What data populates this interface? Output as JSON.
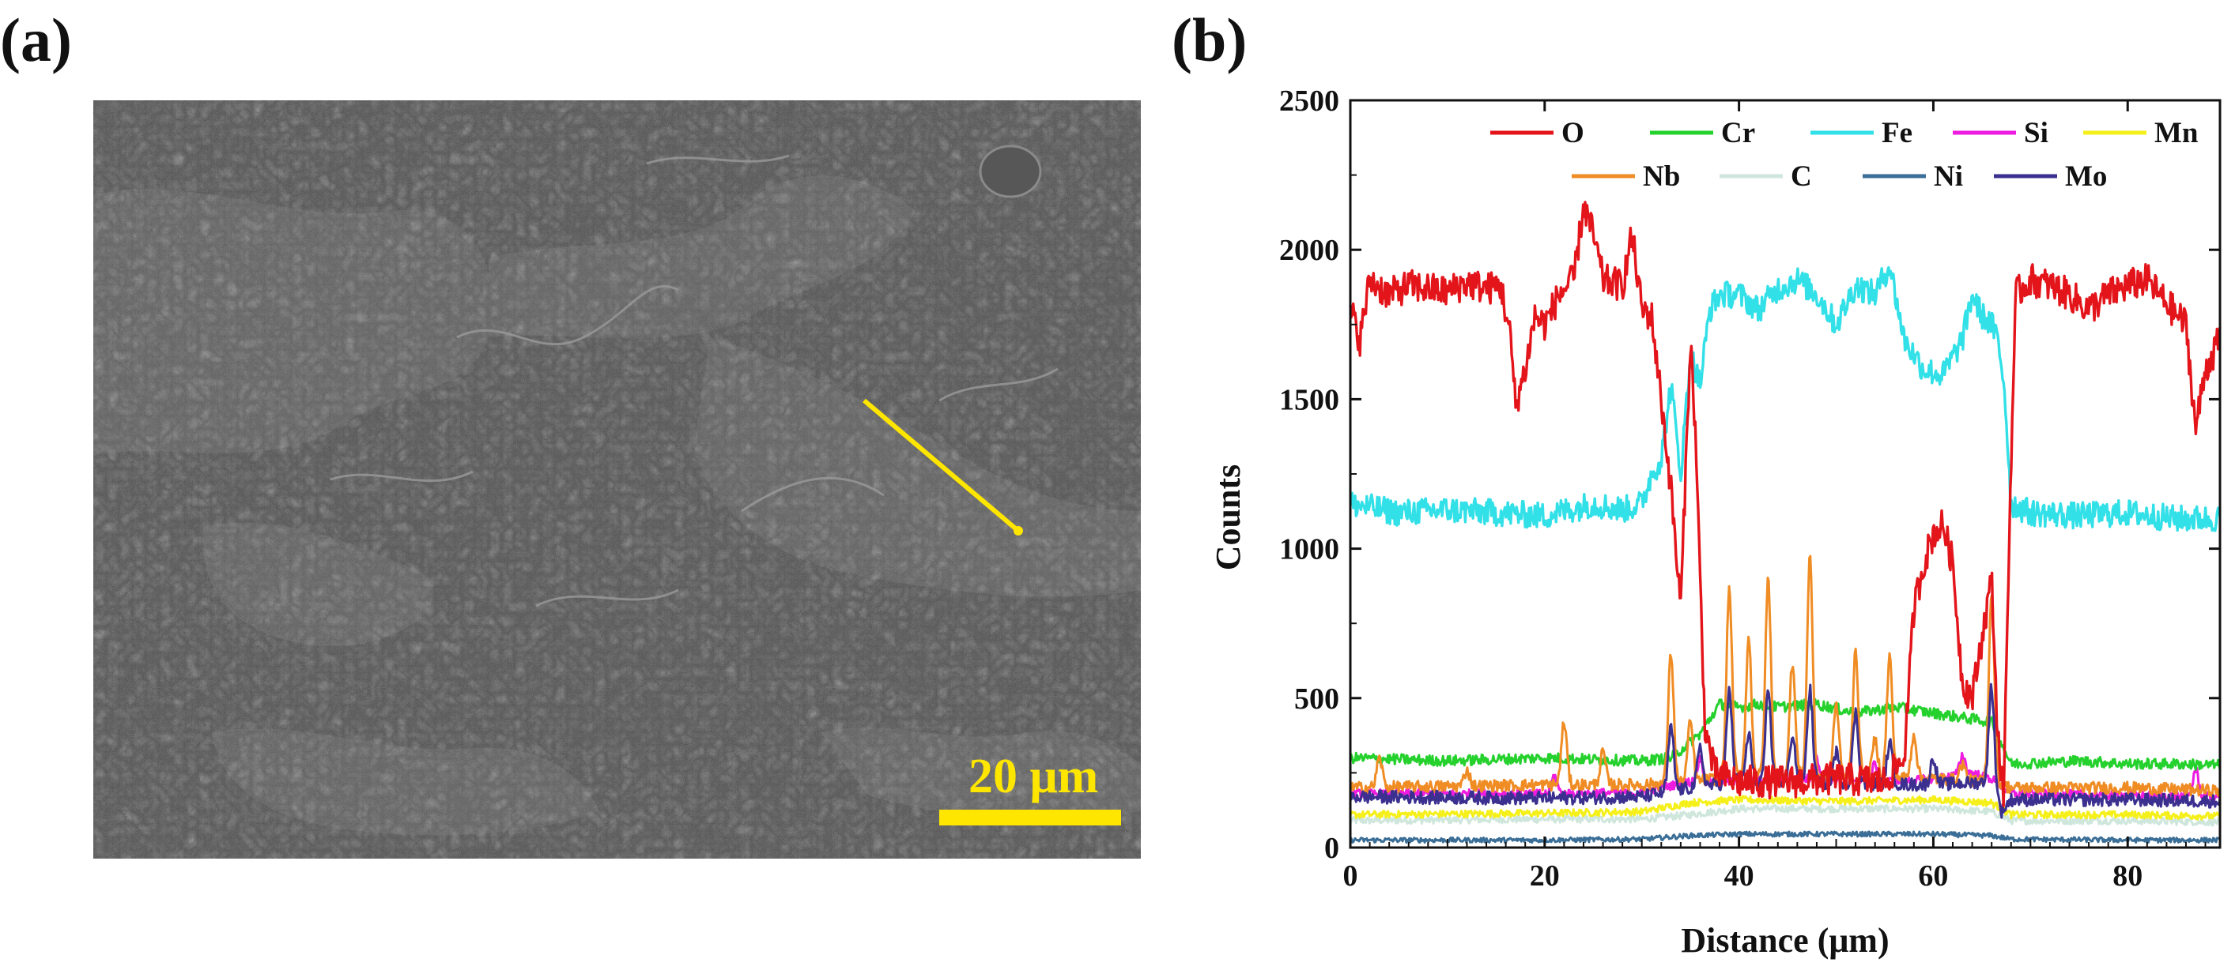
{
  "panels": {
    "a_label": "(a)",
    "b_label": "(b)"
  },
  "sem_image": {
    "scale_bar_label": "20 μm",
    "scan_line_color": "#ffe600",
    "background_color": "#4a4a4a"
  },
  "chart_data": {
    "type": "line",
    "title": "",
    "xlabel": "Distance (μm)",
    "ylabel": "Counts",
    "xlim": [
      0,
      89.5
    ],
    "ylim": [
      0,
      2500
    ],
    "xticks": [
      0,
      20,
      40,
      60,
      80
    ],
    "yticks": [
      0,
      500,
      1000,
      1500,
      2000,
      2500
    ],
    "legend_position": "top-right",
    "series": [
      {
        "name": "O",
        "color": "#e3141a",
        "anchors": [
          [
            0,
            1800
          ],
          [
            1,
            1700
          ],
          [
            2,
            1900
          ],
          [
            4,
            1850
          ],
          [
            6,
            1880
          ],
          [
            8,
            1870
          ],
          [
            10,
            1860
          ],
          [
            12,
            1890
          ],
          [
            14,
            1870
          ],
          [
            15.5,
            1880
          ],
          [
            16.5,
            1700
          ],
          [
            17,
            1480
          ],
          [
            18,
            1600
          ],
          [
            19,
            1780
          ],
          [
            20,
            1750
          ],
          [
            21.5,
            1850
          ],
          [
            23,
            1900
          ],
          [
            24,
            2150
          ],
          [
            25,
            2050
          ],
          [
            26,
            1900
          ],
          [
            28,
            1880
          ],
          [
            29,
            2050
          ],
          [
            30,
            1800
          ],
          [
            31,
            1780
          ],
          [
            32,
            1500
          ],
          [
            33,
            1200
          ],
          [
            34,
            800
          ],
          [
            35,
            1700
          ],
          [
            35.5,
            1400
          ],
          [
            36.5,
            400
          ],
          [
            37.5,
            250
          ],
          [
            40,
            220
          ],
          [
            45,
            220
          ],
          [
            50,
            230
          ],
          [
            55,
            220
          ],
          [
            57,
            300
          ],
          [
            58,
            800
          ],
          [
            59,
            950
          ],
          [
            60,
            1050
          ],
          [
            61,
            1080
          ],
          [
            62,
            950
          ],
          [
            63,
            550
          ],
          [
            64,
            500
          ],
          [
            65,
            700
          ],
          [
            66,
            900
          ],
          [
            66.6,
            400
          ],
          [
            67.2,
            150
          ],
          [
            68,
            1300
          ],
          [
            68.5,
            1850
          ],
          [
            70,
            1900
          ],
          [
            72,
            1880
          ],
          [
            74,
            1850
          ],
          [
            76,
            1800
          ],
          [
            78,
            1850
          ],
          [
            80,
            1880
          ],
          [
            82,
            1900
          ],
          [
            84,
            1820
          ],
          [
            86,
            1750
          ],
          [
            87,
            1400
          ],
          [
            88,
            1600
          ],
          [
            89.5,
            1700
          ]
        ]
      },
      {
        "name": "Cr",
        "color": "#25d12c",
        "anchors": [
          [
            0,
            300
          ],
          [
            10,
            290
          ],
          [
            20,
            300
          ],
          [
            30,
            290
          ],
          [
            33,
            300
          ],
          [
            36,
            380
          ],
          [
            38,
            480
          ],
          [
            40,
            470
          ],
          [
            42,
            480
          ],
          [
            44,
            470
          ],
          [
            48,
            480
          ],
          [
            52,
            450
          ],
          [
            56,
            470
          ],
          [
            60,
            450
          ],
          [
            64,
            430
          ],
          [
            66,
            420
          ],
          [
            67,
            350
          ],
          [
            68,
            280
          ],
          [
            75,
            290
          ],
          [
            80,
            280
          ],
          [
            85,
            280
          ],
          [
            89.5,
            275
          ]
        ]
      },
      {
        "name": "Fe",
        "color": "#32e0e8",
        "anchors": [
          [
            0,
            1150
          ],
          [
            5,
            1120
          ],
          [
            10,
            1130
          ],
          [
            15,
            1120
          ],
          [
            20,
            1110
          ],
          [
            25,
            1150
          ],
          [
            28,
            1130
          ],
          [
            30,
            1150
          ],
          [
            31,
            1250
          ],
          [
            32,
            1300
          ],
          [
            33,
            1550
          ],
          [
            34,
            1250
          ],
          [
            35,
            1650
          ],
          [
            36,
            1550
          ],
          [
            37,
            1800
          ],
          [
            38,
            1850
          ],
          [
            40,
            1850
          ],
          [
            42,
            1800
          ],
          [
            44,
            1870
          ],
          [
            46,
            1900
          ],
          [
            48,
            1850
          ],
          [
            50,
            1750
          ],
          [
            52,
            1880
          ],
          [
            54,
            1850
          ],
          [
            55.5,
            1950
          ],
          [
            57,
            1700
          ],
          [
            59,
            1600
          ],
          [
            61,
            1580
          ],
          [
            63,
            1700
          ],
          [
            64,
            1850
          ],
          [
            65,
            1780
          ],
          [
            66,
            1750
          ],
          [
            66.6,
            1700
          ],
          [
            67.3,
            1550
          ],
          [
            68,
            1150
          ],
          [
            70,
            1120
          ],
          [
            75,
            1110
          ],
          [
            80,
            1120
          ],
          [
            85,
            1100
          ],
          [
            89.5,
            1100
          ]
        ]
      },
      {
        "name": "Si",
        "color": "#ee1be0",
        "anchors": [
          [
            0,
            180
          ],
          [
            20,
            180
          ],
          [
            30,
            185
          ],
          [
            32,
            200
          ],
          [
            35,
            220
          ],
          [
            40,
            220
          ],
          [
            45,
            230
          ],
          [
            50,
            230
          ],
          [
            55,
            220
          ],
          [
            60,
            230
          ],
          [
            64,
            250
          ],
          [
            66,
            230
          ],
          [
            68,
            180
          ],
          [
            80,
            175
          ],
          [
            89.5,
            170
          ]
        ]
      },
      {
        "name": "Mn",
        "color": "#f5ef1a",
        "anchors": [
          [
            0,
            110
          ],
          [
            20,
            115
          ],
          [
            30,
            120
          ],
          [
            35,
            150
          ],
          [
            40,
            160
          ],
          [
            50,
            155
          ],
          [
            60,
            160
          ],
          [
            66,
            150
          ],
          [
            68,
            110
          ],
          [
            80,
            110
          ],
          [
            89.5,
            105
          ]
        ]
      },
      {
        "name": "Nb",
        "color": "#f08c24",
        "anchors": [
          [
            0,
            200
          ],
          [
            20,
            210
          ],
          [
            30,
            210
          ],
          [
            35,
            220
          ],
          [
            40,
            240
          ],
          [
            50,
            240
          ],
          [
            60,
            230
          ],
          [
            66,
            220
          ],
          [
            68,
            200
          ],
          [
            80,
            200
          ],
          [
            89.5,
            190
          ]
        ]
      },
      {
        "name": "C",
        "color": "#cfe6dc",
        "anchors": [
          [
            0,
            90
          ],
          [
            20,
            95
          ],
          [
            30,
            95
          ],
          [
            35,
            110
          ],
          [
            40,
            130
          ],
          [
            50,
            130
          ],
          [
            60,
            130
          ],
          [
            66,
            120
          ],
          [
            68,
            90
          ],
          [
            80,
            90
          ],
          [
            89.5,
            85
          ]
        ]
      },
      {
        "name": "Ni",
        "color": "#3a6e97",
        "anchors": [
          [
            0,
            25
          ],
          [
            20,
            25
          ],
          [
            30,
            28
          ],
          [
            35,
            40
          ],
          [
            40,
            45
          ],
          [
            50,
            45
          ],
          [
            60,
            45
          ],
          [
            66,
            40
          ],
          [
            68,
            28
          ],
          [
            80,
            25
          ],
          [
            89.5,
            25
          ]
        ]
      },
      {
        "name": "Mo",
        "color": "#3b2f8f",
        "anchors": [
          [
            0,
            170
          ],
          [
            20,
            165
          ],
          [
            30,
            170
          ],
          [
            35,
            200
          ],
          [
            40,
            220
          ],
          [
            50,
            215
          ],
          [
            60,
            210
          ],
          [
            66,
            220
          ],
          [
            67,
            120
          ],
          [
            68,
            160
          ],
          [
            80,
            160
          ],
          [
            89.5,
            155
          ]
        ]
      }
    ],
    "peaks": {
      "Nb": [
        [
          3,
          300
        ],
        [
          12,
          260
        ],
        [
          22,
          420
        ],
        [
          26,
          320
        ],
        [
          33,
          650
        ],
        [
          35,
          420
        ],
        [
          39,
          870
        ],
        [
          41,
          700
        ],
        [
          43,
          900
        ],
        [
          45.5,
          620
        ],
        [
          47.3,
          980
        ],
        [
          50,
          480
        ],
        [
          52,
          650
        ],
        [
          54,
          360
        ],
        [
          55.5,
          640
        ],
        [
          58,
          380
        ],
        [
          63,
          280
        ],
        [
          66,
          860
        ]
      ],
      "Mo": [
        [
          33,
          400
        ],
        [
          36,
          330
        ],
        [
          39,
          520
        ],
        [
          41,
          380
        ],
        [
          43,
          510
        ],
        [
          45.5,
          380
        ],
        [
          47.3,
          530
        ],
        [
          50,
          320
        ],
        [
          52,
          450
        ],
        [
          55.5,
          350
        ],
        [
          60,
          300
        ],
        [
          66,
          540
        ]
      ],
      "Si": [
        [
          21,
          240
        ],
        [
          36,
          300
        ],
        [
          48,
          300
        ],
        [
          54,
          280
        ],
        [
          63,
          310
        ],
        [
          87,
          260
        ]
      ]
    }
  }
}
